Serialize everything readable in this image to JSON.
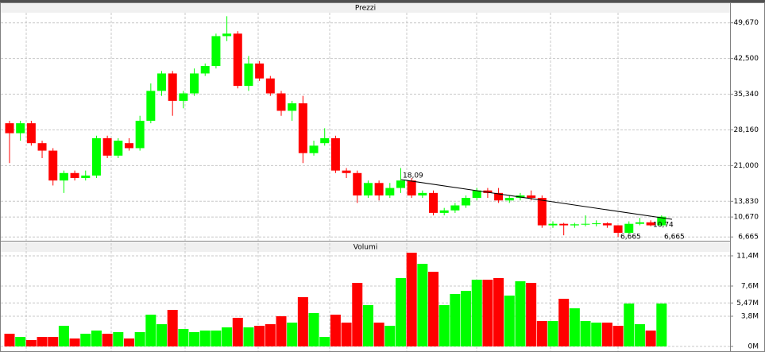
{
  "chart_data": {
    "type": "candlestick",
    "panes": [
      {
        "title": "Prezzi",
        "ylim": [
          5.9,
          51.7
        ],
        "yticks": [
          {
            "value": 6.665,
            "label": "6,665"
          },
          {
            "value": 10.67,
            "label": "10,670"
          },
          {
            "value": 13.83,
            "label": "13,830"
          },
          {
            "value": 21.0,
            "label": "21,000"
          },
          {
            "value": 28.16,
            "label": "28,160"
          },
          {
            "value": 35.34,
            "label": "35,340"
          },
          {
            "value": 42.5,
            "label": "42,500"
          },
          {
            "value": 49.67,
            "label": "49,670"
          }
        ],
        "open": [
          29.5,
          27.5,
          29.5,
          25.5,
          24,
          18,
          19.5,
          18.5,
          19,
          26.5,
          23,
          25.5,
          24.5,
          30,
          36,
          39.5,
          34,
          35.5,
          39.5,
          41,
          47,
          47.5,
          37,
          41.5,
          38.5,
          35.5,
          32,
          33.5,
          23.5,
          25.5,
          26.5,
          20,
          19.5,
          15,
          17.5,
          15,
          16.5,
          18,
          15,
          15.5,
          11.5,
          12,
          13,
          14.5,
          16,
          15.5,
          14,
          14.5,
          15,
          14.5,
          9,
          9.3,
          9,
          9.2,
          9.3,
          9.4,
          9,
          7.5,
          9.3,
          9.6,
          9
        ],
        "high": [
          30,
          30,
          30,
          26,
          24.5,
          20,
          20,
          20,
          27,
          27,
          26.5,
          26.5,
          31,
          37.5,
          40,
          40,
          36,
          40.5,
          41.5,
          47.5,
          51,
          48,
          43,
          42,
          39,
          36,
          34,
          35,
          26,
          28.5,
          27,
          20.5,
          20,
          18,
          18,
          17.5,
          20.5,
          18.5,
          16,
          16,
          12.5,
          13.5,
          15,
          16.5,
          16.5,
          16.5,
          15,
          15.5,
          16,
          15,
          9.8,
          9.5,
          9.5,
          11,
          10,
          9.6,
          9,
          9.8,
          10.5,
          10,
          11
        ],
        "low": [
          21.5,
          26,
          25,
          22.5,
          17,
          15.5,
          18,
          18,
          18.5,
          22.5,
          22.5,
          24,
          24,
          29.5,
          35,
          31,
          32.5,
          35,
          39,
          40.5,
          46,
          36.5,
          36,
          38,
          35,
          31,
          30,
          21.5,
          23,
          25,
          19.5,
          18.5,
          13.5,
          14.5,
          14,
          14.5,
          15.5,
          14.5,
          14.5,
          11,
          11,
          11.5,
          12.5,
          14,
          14.5,
          13.5,
          13.5,
          14,
          14,
          8.5,
          8.5,
          7,
          8.5,
          8.8,
          8.8,
          8.5,
          6.665,
          7.3,
          9,
          8.8,
          8.8
        ],
        "close": [
          27.5,
          29.5,
          25.5,
          24,
          18,
          19.5,
          18.5,
          19,
          26.5,
          23,
          26,
          24.5,
          30,
          36,
          39.5,
          34,
          35.5,
          39.5,
          41,
          47,
          47.5,
          37,
          41.5,
          38.5,
          35.5,
          32,
          33.5,
          23.5,
          25,
          26.5,
          20,
          19.5,
          15,
          17.5,
          15,
          16.5,
          18,
          15,
          15.5,
          11.5,
          12,
          13,
          14.5,
          16,
          15.5,
          14,
          14.5,
          15,
          14.5,
          9,
          9.3,
          9,
          9.2,
          9.3,
          9.4,
          9,
          7.5,
          9.3,
          9.6,
          9,
          10.74
        ]
      },
      {
        "title": "Volumi",
        "ylim": [
          -0.7,
          12.8
        ],
        "yticks": [
          {
            "value": 0,
            "label": "0M"
          },
          {
            "value": 3.8,
            "label": "3,8M"
          },
          {
            "value": 5.47,
            "label": "5,47M"
          },
          {
            "value": 7.6,
            "label": "7,6M"
          },
          {
            "value": 11.4,
            "label": "11,4M"
          }
        ],
        "values": [
          1.6,
          1.2,
          0.8,
          1.2,
          1.2,
          2.6,
          1.0,
          1.6,
          2.0,
          1.6,
          1.8,
          1.0,
          1.8,
          4.0,
          2.8,
          4.6,
          2.2,
          1.8,
          2.0,
          2.0,
          2.4,
          3.6,
          2.4,
          2.6,
          2.8,
          3.8,
          3.0,
          6.2,
          4.2,
          1.2,
          4.0,
          3.0,
          8.0,
          5.2,
          3.0,
          2.6,
          8.6,
          11.8,
          10.4,
          9.4,
          5.2,
          6.6,
          7.0,
          8.4,
          8.4,
          8.6,
          6.4,
          8.2,
          8.0,
          3.2,
          3.2,
          6.0,
          4.8,
          3.2,
          3.0,
          3.0,
          2.6,
          5.4,
          2.8,
          2.0,
          5.4
        ]
      }
    ],
    "annotations": [
      "18,09",
      "10,74",
      "6,665",
      "6,665"
    ],
    "up_color": "#00ff00",
    "down_color": "#ff0000",
    "grid": true
  }
}
